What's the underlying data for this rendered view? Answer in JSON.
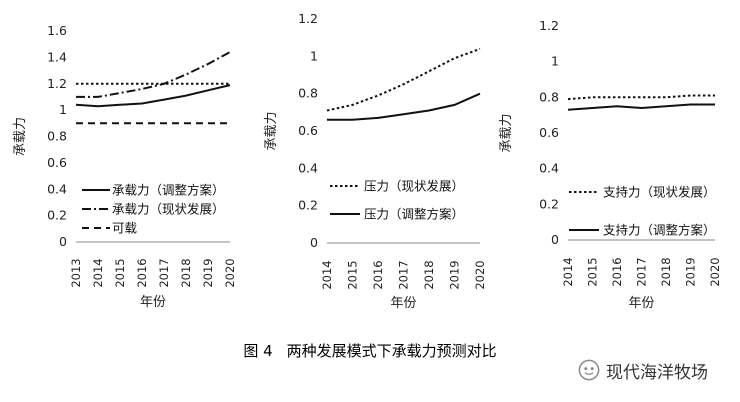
{
  "caption": {
    "figure_no": "图 4",
    "text": "两种发展模式下承载力预测对比"
  },
  "watermark": {
    "icon": "wechat-icon",
    "text": "现代海洋牧场"
  },
  "chart_data": [
    {
      "type": "line",
      "title": "",
      "xlabel": "年份",
      "ylabel": "承载力",
      "x": [
        "2013",
        "2014",
        "2015",
        "2016",
        "2017",
        "2018",
        "2019",
        "2020"
      ],
      "ylim": [
        0,
        1.6
      ],
      "yticks": [
        "0",
        "0.2",
        "0.4",
        "0.6",
        "0.8",
        "1",
        "1.2",
        "1.4",
        "1.6"
      ],
      "legend_position": "bottom-left",
      "series": [
        {
          "name": "承载力（调整方案）",
          "style": "solid",
          "values": [
            1.04,
            1.03,
            1.04,
            1.05,
            1.08,
            1.11,
            1.15,
            1.19
          ]
        },
        {
          "name": "承载力（现状发展）",
          "style": "dashdot",
          "values": [
            1.1,
            1.1,
            1.13,
            1.16,
            1.2,
            1.27,
            1.35,
            1.44
          ]
        },
        {
          "name": "可载",
          "style": "dashed",
          "values": [
            0.9,
            0.9,
            0.9,
            0.9,
            0.9,
            0.9,
            0.9,
            0.9
          ]
        },
        {
          "name": "",
          "style": "dotted",
          "values": [
            1.2,
            1.2,
            1.2,
            1.2,
            1.2,
            1.2,
            1.2,
            1.2
          ]
        }
      ]
    },
    {
      "type": "line",
      "title": "",
      "xlabel": "年份",
      "ylabel": "承载力",
      "x": [
        "2014",
        "2015",
        "2016",
        "2017",
        "2018",
        "2019",
        "2020"
      ],
      "ylim": [
        0,
        1.2
      ],
      "yticks": [
        "0",
        "0.2",
        "0.4",
        "0.6",
        "0.8",
        "1",
        "1.2"
      ],
      "legend_position": "bottom-left",
      "series": [
        {
          "name": "压力（现状发展）",
          "style": "dotted",
          "values": [
            0.71,
            0.74,
            0.79,
            0.85,
            0.92,
            0.99,
            1.04
          ]
        },
        {
          "name": "压力（调整方案）",
          "style": "solid",
          "values": [
            0.66,
            0.66,
            0.67,
            0.69,
            0.71,
            0.74,
            0.8
          ]
        }
      ]
    },
    {
      "type": "line",
      "title": "",
      "xlabel": "年份",
      "ylabel": "承载力",
      "x": [
        "2014",
        "2015",
        "2016",
        "2017",
        "2018",
        "2019",
        "2020"
      ],
      "ylim": [
        0,
        1.2
      ],
      "yticks": [
        "0",
        "0.2",
        "0.4",
        "0.6",
        "0.8",
        "1",
        "1.2"
      ],
      "legend_position": "bottom-left",
      "series": [
        {
          "name": "支持力（现状发展）",
          "style": "dotted",
          "values": [
            0.79,
            0.8,
            0.8,
            0.8,
            0.8,
            0.81,
            0.81
          ]
        },
        {
          "name": "支持力（调整方案）",
          "style": "solid",
          "values": [
            0.73,
            0.74,
            0.75,
            0.74,
            0.75,
            0.76,
            0.76
          ]
        }
      ]
    }
  ]
}
